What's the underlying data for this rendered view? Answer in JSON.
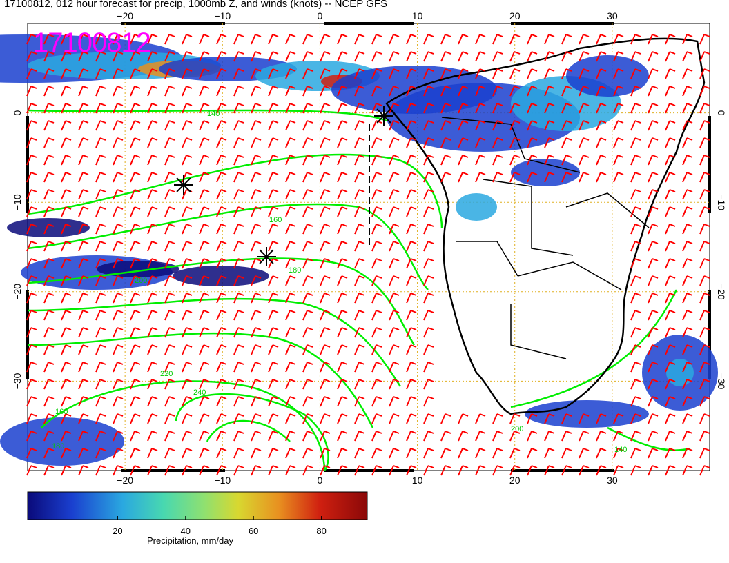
{
  "title": "17100812, 012 hour forecast for precip, 1000mb Z, and winds (knots) -- NCEP GFS",
  "stamp": "17100812",
  "map": {
    "lon_range": [
      -30,
      40
    ],
    "lat_range": [
      -40,
      10
    ],
    "x_ticks": [
      "−20",
      "−10",
      "0",
      "10",
      "20",
      "30"
    ],
    "y_ticks": [
      "0",
      "−10",
      "−20",
      "−30"
    ],
    "grid": "dotted orange",
    "contour_color": "#00ee00",
    "wind_barb_color": "#ff0000",
    "contour_labels": [
      "140",
      "160",
      "180",
      "200",
      "220",
      "240",
      "180",
      "160",
      "200",
      "140"
    ]
  },
  "colorbar": {
    "label": "Precipitation, mm/day",
    "ticks": [
      "20",
      "40",
      "60",
      "80"
    ],
    "colors": [
      "#0a0a7a",
      "#1a3fcf",
      "#2aa8e0",
      "#48d8b0",
      "#8fe070",
      "#d8d830",
      "#e89020",
      "#d02010",
      "#8a0808"
    ]
  }
}
